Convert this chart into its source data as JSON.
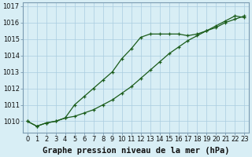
{
  "xlabel": "Graphe pression niveau de la mer (hPa)",
  "background_color": "#d8eef5",
  "grid_color": "#aacce0",
  "line_color": "#1a5c1a",
  "marker_color": "#1a5c1a",
  "series1": [
    1010.0,
    1009.7,
    1009.9,
    1010.0,
    1010.2,
    1011.0,
    1011.5,
    1012.0,
    1012.5,
    1013.0,
    1013.8,
    1014.4,
    1015.1,
    1015.3,
    1015.3,
    1015.3,
    1015.3,
    1015.2,
    1015.3,
    1015.5,
    1015.8,
    1016.1,
    1016.4,
    1016.3
  ],
  "series2": [
    1010.0,
    1009.7,
    1009.9,
    1010.0,
    1010.2,
    1010.3,
    1010.5,
    1010.7,
    1011.0,
    1011.3,
    1011.7,
    1012.1,
    1012.6,
    1013.1,
    1013.6,
    1014.1,
    1014.5,
    1014.9,
    1015.2,
    1015.5,
    1015.7,
    1016.0,
    1016.2,
    1016.4
  ],
  "xlim": [
    -0.5,
    23.5
  ],
  "ylim": [
    1009.3,
    1017.2
  ],
  "yticks": [
    1010,
    1011,
    1012,
    1013,
    1014,
    1015,
    1016,
    1017
  ],
  "xticks": [
    0,
    1,
    2,
    3,
    4,
    5,
    6,
    7,
    8,
    9,
    10,
    11,
    12,
    13,
    14,
    15,
    16,
    17,
    18,
    19,
    20,
    21,
    22,
    23
  ],
  "xtick_labels": [
    "0",
    "1",
    "2",
    "3",
    "4",
    "5",
    "6",
    "7",
    "8",
    "9",
    "10",
    "11",
    "12",
    "13",
    "14",
    "15",
    "16",
    "17",
    "18",
    "19",
    "20",
    "21",
    "22",
    "23"
  ],
  "fontsize_xlabel": 7.5,
  "fontsize_ticks": 6.0
}
